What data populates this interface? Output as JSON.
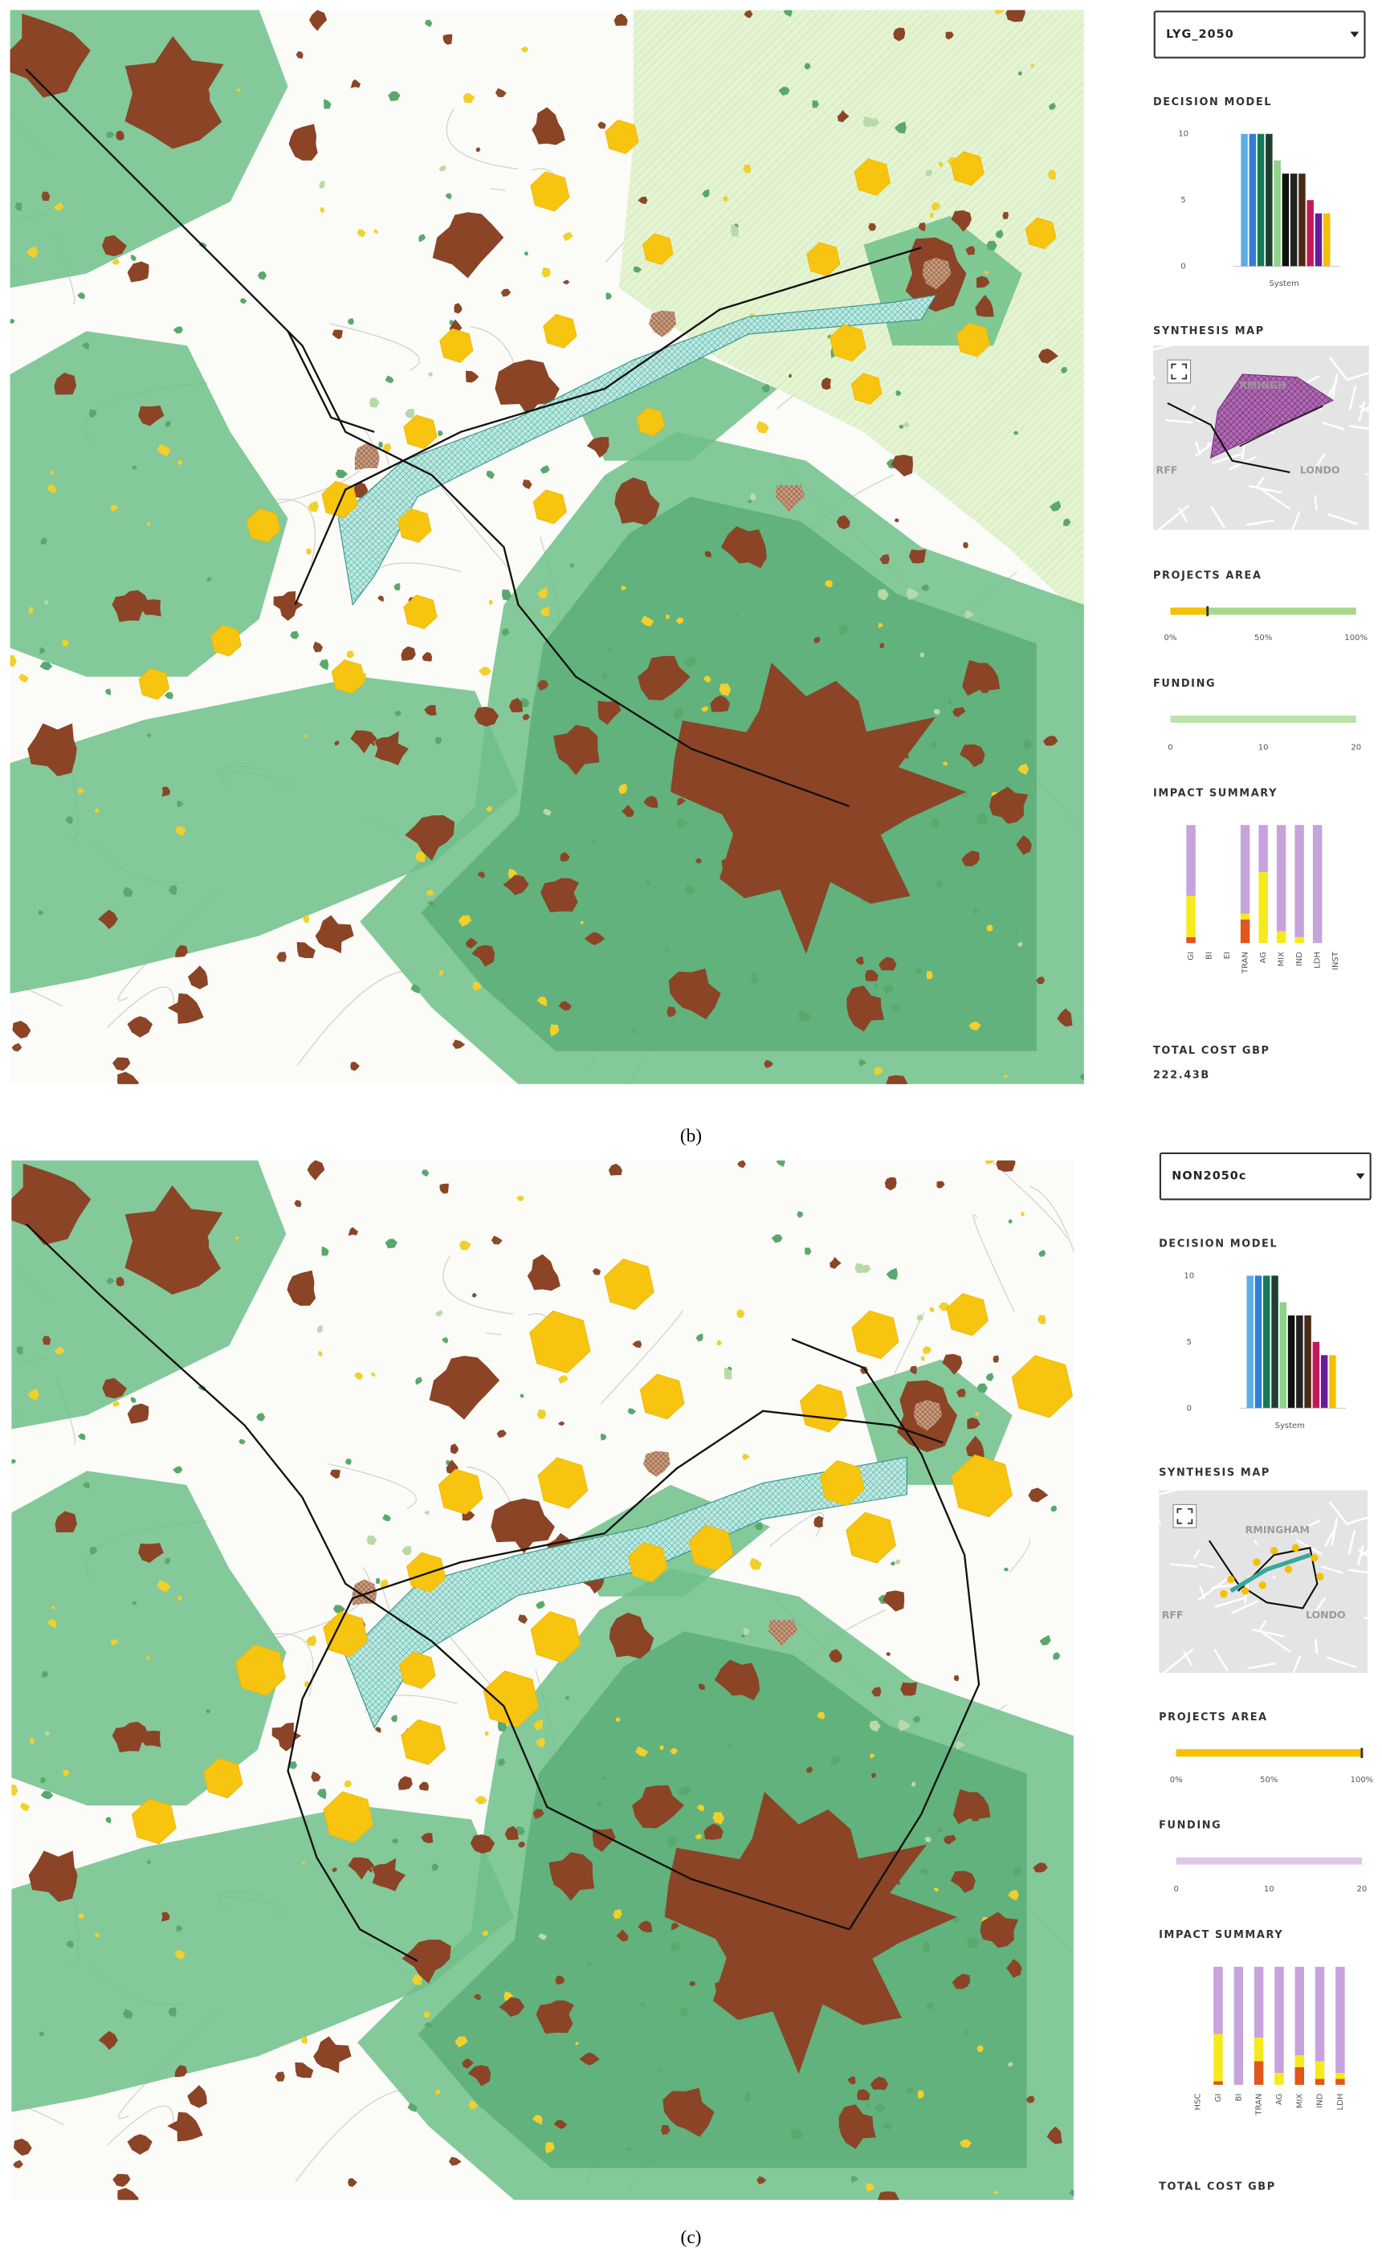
{
  "panels": [
    {
      "caption": "(b)",
      "scenario": "LYG_2050",
      "decision_model": {
        "title": "DECISION MODEL",
        "type": "bar",
        "ylim": [
          0,
          10
        ],
        "yticks": [
          0,
          5,
          10
        ],
        "x_label": "System",
        "values": [
          10,
          10,
          10,
          10,
          8,
          7,
          7,
          7,
          5,
          4,
          4
        ],
        "colors": [
          "#5dade2",
          "#2f7fd6",
          "#137a5a",
          "#1f3f2f",
          "#8fd28a",
          "#111111",
          "#222222",
          "#4a2a14",
          "#c2185b",
          "#6a1b9a",
          "#f5c000"
        ]
      },
      "synthesis_map": {
        "title": "SYNTHESIS MAP",
        "labels": [
          "RMINGH",
          "LONDO",
          "RFF"
        ]
      },
      "projects_area": {
        "title": "PROJECTS AREA",
        "type": "bar",
        "xlim": [
          0,
          100
        ],
        "xticks": [
          {
            "value": 0,
            "label": "0%"
          },
          {
            "value": 50,
            "label": "50%"
          },
          {
            "value": 100,
            "label": "100%"
          }
        ],
        "value": 20,
        "color": "#f5c000",
        "track_color": "#a8d98a"
      },
      "funding": {
        "title": "FUNDING",
        "type": "bar",
        "xlim": [
          0,
          20
        ],
        "xticks": [
          0,
          10,
          20
        ],
        "value": 20,
        "color": "#b9e3a8"
      },
      "impact_summary": {
        "title": "IMPACT SUMMARY",
        "type": "stacked_bar",
        "categories": [
          "GI",
          "BI",
          "EI",
          "TRAN",
          "AG",
          "MIX",
          "IND",
          "LDH",
          "INST"
        ],
        "series": [
          {
            "color": "#e0561b",
            "values": [
              5,
              0,
              0,
              20,
              0,
              0,
              0,
              0,
              0
            ]
          },
          {
            "color": "#f7ea1c",
            "values": [
              35,
              0,
              0,
              5,
              60,
              10,
              5,
              0,
              0
            ]
          },
          {
            "color": "#c7a3dd",
            "values": [
              60,
              0,
              0,
              75,
              40,
              90,
              95,
              100,
              0
            ]
          }
        ]
      },
      "total_cost": {
        "label": "TOTAL COST GBP",
        "value": "222.43B"
      }
    },
    {
      "caption": "(c)",
      "scenario": "NON2050c",
      "decision_model": {
        "title": "DECISION MODEL",
        "type": "bar",
        "ylim": [
          0,
          10
        ],
        "yticks": [
          0,
          5,
          10
        ],
        "x_label": "System",
        "values": [
          10,
          10,
          10,
          10,
          8,
          7,
          7,
          7,
          5,
          4,
          4
        ],
        "colors": [
          "#5dade2",
          "#2f7fd6",
          "#137a5a",
          "#1f3f2f",
          "#8fd28a",
          "#111111",
          "#222222",
          "#4a2a14",
          "#c2185b",
          "#6a1b9a",
          "#f5c000"
        ]
      },
      "synthesis_map": {
        "title": "SYNTHESIS MAP",
        "labels": [
          "RMINGHAM",
          "LONDO",
          "RFF"
        ]
      },
      "projects_area": {
        "title": "PROJECTS AREA",
        "type": "bar",
        "xlim": [
          0,
          100
        ],
        "xticks": [
          {
            "value": 0,
            "label": "0%"
          },
          {
            "value": 50,
            "label": "50%"
          },
          {
            "value": 100,
            "label": "100%"
          }
        ],
        "value": 100,
        "color": "#f5c000",
        "track_color": "#a8d98a"
      },
      "funding": {
        "title": "FUNDING",
        "type": "bar",
        "xlim": [
          0,
          20
        ],
        "xticks": [
          0,
          10,
          20
        ],
        "value": 20,
        "color": "#dcc8ea"
      },
      "impact_summary": {
        "title": "IMPACT SUMMARY",
        "type": "stacked_bar",
        "categories": [
          "HSC",
          "GI",
          "BI",
          "TRAN",
          "AG",
          "MIX",
          "IND",
          "LDH"
        ],
        "series": [
          {
            "color": "#e0561b",
            "values": [
              0,
              3,
              0,
              20,
              0,
              15,
              5,
              5
            ]
          },
          {
            "color": "#f7ea1c",
            "values": [
              0,
              40,
              0,
              20,
              10,
              10,
              15,
              5
            ]
          },
          {
            "color": "#c7a3dd",
            "values": [
              0,
              57,
              100,
              60,
              90,
              75,
              80,
              90
            ]
          }
        ]
      },
      "total_cost": {
        "label": "TOTAL COST GBP"
      }
    }
  ]
}
